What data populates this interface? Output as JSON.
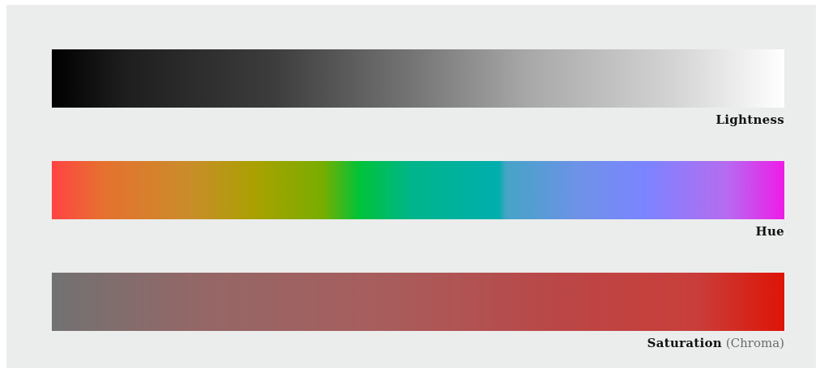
{
  "scales": {
    "lightness": {
      "label": "Lightness",
      "colors": [
        "#000000",
        "#ffffff"
      ]
    },
    "hue": {
      "label": "Hue",
      "colors": [
        "#ff4343",
        "#a8a100",
        "#00c338",
        "#00aead",
        "#7b84ff",
        "#ee1ce8"
      ]
    },
    "saturation": {
      "label": "Saturation",
      "label_note": "(Chroma)",
      "colors": [
        "#727272",
        "#dd1406"
      ]
    }
  },
  "background_color": "#ebedec"
}
